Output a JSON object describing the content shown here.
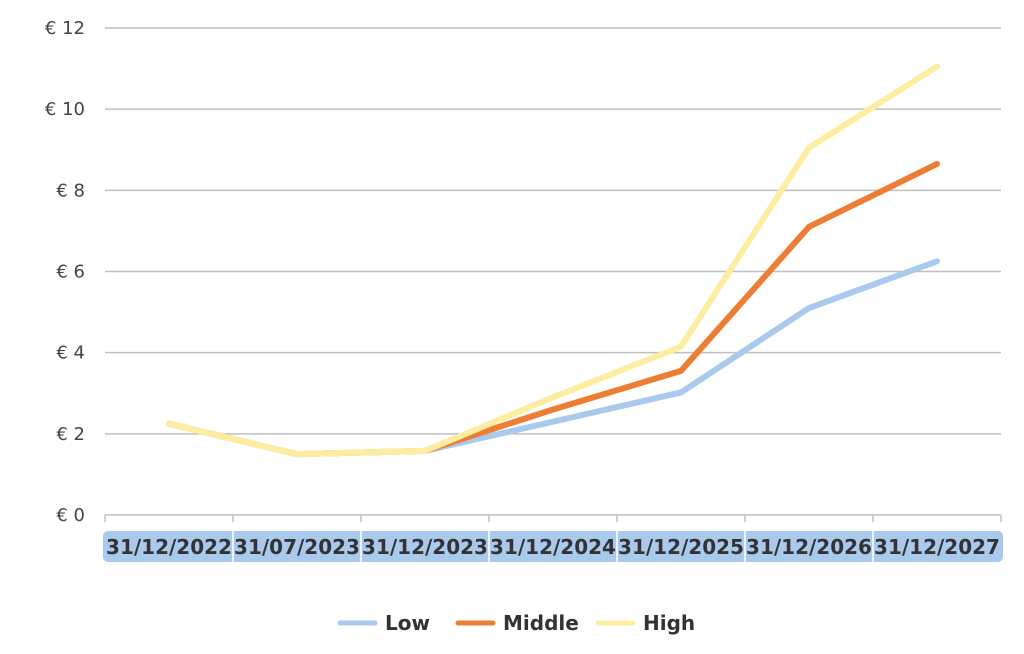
{
  "chart_data": {
    "type": "line",
    "title": "",
    "xlabel": "",
    "ylabel": "",
    "categories": [
      "31/12/2022",
      "31/07/2023",
      "31/12/2023",
      "31/12/2024",
      "31/12/2025",
      "31/12/2026",
      "31/12/2027"
    ],
    "ylim": [
      0,
      12
    ],
    "y_ticks": [
      0,
      2,
      4,
      6,
      8,
      10,
      12
    ],
    "y_tick_labels": [
      "€ 0",
      "€ 2",
      "€ 4",
      "€ 6",
      "€ 8",
      "€ 10",
      "€ 12"
    ],
    "grid": true,
    "legend_position": "bottom",
    "series": [
      {
        "name": "Low",
        "color": "#a9c9ed",
        "values": [
          2.25,
          1.5,
          1.58,
          2.3,
          3.02,
          5.1,
          6.25
        ]
      },
      {
        "name": "Middle",
        "color": "#ee7d34",
        "values": [
          2.25,
          1.5,
          1.58,
          2.6,
          3.55,
          7.1,
          8.65
        ]
      },
      {
        "name": "High",
        "color": "#fdeda0",
        "values": [
          2.25,
          1.5,
          1.58,
          2.9,
          4.15,
          9.05,
          11.05
        ]
      }
    ],
    "category_band_color": "#a9c9ed",
    "gridline_color": "#c0c0c0"
  }
}
